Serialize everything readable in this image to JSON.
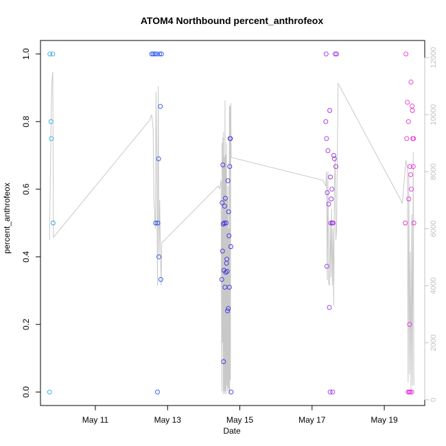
{
  "chart_data": {
    "type": "scatter",
    "title": "ATOM4 Northbound percent_anthrofeox",
    "xlabel": "Date",
    "ylabel": "percent_anthrofeox",
    "x_unit": "days since May 9 00:00",
    "xlim": [
      0.48,
      11.12
    ],
    "ylim": [
      -0.04,
      1.04
    ],
    "y2lim": [
      -200,
      12600
    ],
    "x_ticks": [
      {
        "value": 2,
        "label": "May 11"
      },
      {
        "value": 4,
        "label": "May 13"
      },
      {
        "value": 6,
        "label": "May 15"
      },
      {
        "value": 8,
        "label": "May 17"
      },
      {
        "value": 10,
        "label": "May 19"
      }
    ],
    "y_ticks": [
      {
        "value": 0.0,
        "label": "0.0"
      },
      {
        "value": 0.2,
        "label": "0.2"
      },
      {
        "value": 0.4,
        "label": "0.4"
      },
      {
        "value": 0.6,
        "label": "0.6"
      },
      {
        "value": 0.8,
        "label": "0.8"
      },
      {
        "value": 1.0,
        "label": "1.0"
      }
    ],
    "y2_ticks": [
      {
        "value": 0,
        "label": "0"
      },
      {
        "value": 2000,
        "label": "2000"
      },
      {
        "value": 4000,
        "label": "4000"
      },
      {
        "value": 6000,
        "label": "6000"
      },
      {
        "value": 8000,
        "label": "8000"
      },
      {
        "value": 10000,
        "label": "10000"
      },
      {
        "value": 12000,
        "label": "12000"
      }
    ],
    "points": [
      {
        "x": 0.73,
        "y": 0.0,
        "c": "#29a8e6"
      },
      {
        "x": 0.74,
        "y": 1.0,
        "c": "#29a8e6"
      },
      {
        "x": 0.77,
        "y": 0.8,
        "c": "#29a8e6"
      },
      {
        "x": 0.78,
        "y": 0.75,
        "c": "#29a8e6"
      },
      {
        "x": 0.82,
        "y": 1.0,
        "c": "#29a8e6"
      },
      {
        "x": 0.83,
        "y": 0.5,
        "c": "#29a8e6"
      },
      {
        "x": 3.56,
        "y": 1.0,
        "c": "#1e4ff0"
      },
      {
        "x": 3.6,
        "y": 1.0,
        "c": "#1e4ff0"
      },
      {
        "x": 3.65,
        "y": 1.0,
        "c": "#1e4ff0"
      },
      {
        "x": 3.67,
        "y": 0.5,
        "c": "#1e4ff0"
      },
      {
        "x": 3.7,
        "y": 1.0,
        "c": "#1e4ff0"
      },
      {
        "x": 3.72,
        "y": 0.0,
        "c": "#1e4ff0"
      },
      {
        "x": 3.73,
        "y": 0.5,
        "c": "#1e4ff0"
      },
      {
        "x": 3.75,
        "y": 0.69,
        "c": "#1e4ff0"
      },
      {
        "x": 3.76,
        "y": 0.4,
        "c": "#1e4ff0"
      },
      {
        "x": 3.78,
        "y": 1.0,
        "c": "#1e4ff0"
      },
      {
        "x": 3.8,
        "y": 0.845,
        "c": "#1e4ff0"
      },
      {
        "x": 3.81,
        "y": 0.333,
        "c": "#1e4ff0"
      },
      {
        "x": 3.83,
        "y": 1.0,
        "c": "#1e4ff0"
      },
      {
        "x": 5.5,
        "y": 0.333,
        "c": "#3a2ee0"
      },
      {
        "x": 5.51,
        "y": 0.56,
        "c": "#3a2ee0"
      },
      {
        "x": 5.52,
        "y": 0.417,
        "c": "#3a2ee0"
      },
      {
        "x": 5.53,
        "y": 0.672,
        "c": "#3a2ee0"
      },
      {
        "x": 5.54,
        "y": 0.497,
        "c": "#3a2ee0"
      },
      {
        "x": 5.55,
        "y": 0.09,
        "c": "#3a2ee0"
      },
      {
        "x": 5.56,
        "y": 0.36,
        "c": "#3a2ee0"
      },
      {
        "x": 5.57,
        "y": 0.5,
        "c": "#3a2ee0"
      },
      {
        "x": 5.58,
        "y": 0.55,
        "c": "#3a2ee0"
      },
      {
        "x": 5.59,
        "y": 0.31,
        "c": "#3a2ee0"
      },
      {
        "x": 5.6,
        "y": 0.573,
        "c": "#3a2ee0"
      },
      {
        "x": 5.61,
        "y": 0.354,
        "c": "#3a2ee0"
      },
      {
        "x": 5.62,
        "y": 0.5,
        "c": "#3a2ee0"
      },
      {
        "x": 5.63,
        "y": 0.381,
        "c": "#3a2ee0"
      },
      {
        "x": 5.64,
        "y": 0.393,
        "c": "#3a2ee0"
      },
      {
        "x": 5.65,
        "y": 0.357,
        "c": "#3a2ee0"
      },
      {
        "x": 5.66,
        "y": 0.24,
        "c": "#3a2ee0"
      },
      {
        "x": 5.67,
        "y": 0.625,
        "c": "#3a2ee0"
      },
      {
        "x": 5.68,
        "y": 0.247,
        "c": "#3a2ee0"
      },
      {
        "x": 5.69,
        "y": 0.533,
        "c": "#3a2ee0"
      },
      {
        "x": 5.7,
        "y": 0.462,
        "c": "#3a2ee0"
      },
      {
        "x": 5.71,
        "y": 0.31,
        "c": "#3a2ee0"
      },
      {
        "x": 5.72,
        "y": 0.667,
        "c": "#3a2ee0"
      },
      {
        "x": 5.73,
        "y": 0.75,
        "c": "#3a2ee0"
      },
      {
        "x": 5.74,
        "y": 0.75,
        "c": "#3a2ee0"
      },
      {
        "x": 5.75,
        "y": 0.43,
        "c": "#3a2ee0"
      },
      {
        "x": 5.76,
        "y": 0.0,
        "c": "#3a2ee0"
      },
      {
        "x": 8.38,
        "y": 0.8,
        "c": "#9a2ee0"
      },
      {
        "x": 8.39,
        "y": 1.0,
        "c": "#9a2ee0"
      },
      {
        "x": 8.4,
        "y": 0.75,
        "c": "#9a2ee0"
      },
      {
        "x": 8.41,
        "y": 0.372,
        "c": "#9a2ee0"
      },
      {
        "x": 8.42,
        "y": 0.59,
        "c": "#9a2ee0"
      },
      {
        "x": 8.44,
        "y": 0.714,
        "c": "#9a2ee0"
      },
      {
        "x": 8.46,
        "y": 0.556,
        "c": "#9a2ee0"
      },
      {
        "x": 8.48,
        "y": 0.25,
        "c": "#9a2ee0"
      },
      {
        "x": 8.49,
        "y": 0.833,
        "c": "#9a2ee0"
      },
      {
        "x": 8.5,
        "y": 0.0,
        "c": "#9a2ee0"
      },
      {
        "x": 8.51,
        "y": 0.636,
        "c": "#9a2ee0"
      },
      {
        "x": 8.52,
        "y": 0.5,
        "c": "#9a2ee0"
      },
      {
        "x": 8.53,
        "y": 0.571,
        "c": "#9a2ee0"
      },
      {
        "x": 8.55,
        "y": 0.6,
        "c": "#9a2ee0"
      },
      {
        "x": 8.56,
        "y": 0.5,
        "c": "#9a2ee0"
      },
      {
        "x": 8.57,
        "y": 0.0,
        "c": "#9a2ee0"
      },
      {
        "x": 8.58,
        "y": 0.5,
        "c": "#9a2ee0"
      },
      {
        "x": 8.6,
        "y": 0.7,
        "c": "#9a2ee0"
      },
      {
        "x": 8.62,
        "y": 0.69,
        "c": "#9a2ee0"
      },
      {
        "x": 8.64,
        "y": 1.0,
        "c": "#9a2ee0"
      },
      {
        "x": 8.66,
        "y": 0.667,
        "c": "#9a2ee0"
      },
      {
        "x": 8.68,
        "y": 1.0,
        "c": "#9a2ee0"
      },
      {
        "x": 10.58,
        "y": 0.5,
        "c": "#ea2bd8"
      },
      {
        "x": 10.6,
        "y": 1.0,
        "c": "#ea2bd8"
      },
      {
        "x": 10.62,
        "y": 0.75,
        "c": "#ea2bd8"
      },
      {
        "x": 10.64,
        "y": 0.857,
        "c": "#ea2bd8"
      },
      {
        "x": 10.66,
        "y": 0.0,
        "c": "#ea2bd8"
      },
      {
        "x": 10.67,
        "y": 0.8,
        "c": "#ea2bd8"
      },
      {
        "x": 10.68,
        "y": 0.571,
        "c": "#ea2bd8"
      },
      {
        "x": 10.69,
        "y": 0.0,
        "c": "#ea2bd8"
      },
      {
        "x": 10.7,
        "y": 0.2,
        "c": "#ea2bd8"
      },
      {
        "x": 10.71,
        "y": 0.667,
        "c": "#ea2bd8"
      },
      {
        "x": 10.72,
        "y": 0.0,
        "c": "#ea2bd8"
      },
      {
        "x": 10.73,
        "y": 0.643,
        "c": "#ea2bd8"
      },
      {
        "x": 10.74,
        "y": 0.917,
        "c": "#ea2bd8"
      },
      {
        "x": 10.75,
        "y": 0.6,
        "c": "#ea2bd8"
      },
      {
        "x": 10.76,
        "y": 0.0,
        "c": "#ea2bd8"
      },
      {
        "x": 10.77,
        "y": 0.846,
        "c": "#ea2bd8"
      },
      {
        "x": 10.78,
        "y": 0.833,
        "c": "#ea2bd8"
      },
      {
        "x": 10.79,
        "y": 0.75,
        "c": "#ea2bd8"
      },
      {
        "x": 10.8,
        "y": 0.667,
        "c": "#ea2bd8"
      },
      {
        "x": 10.81,
        "y": 0.75,
        "c": "#ea2bd8"
      },
      {
        "x": 10.82,
        "y": 0.5,
        "c": "#ea2bd8"
      }
    ],
    "series2": {
      "name": "secondary axis series",
      "color": "#c8c8c8",
      "points": [
        [
          0.73,
          5600
        ],
        [
          0.76,
          8500
        ],
        [
          0.78,
          10300
        ],
        [
          0.8,
          11200
        ],
        [
          0.82,
          11500
        ],
        [
          0.84,
          5700
        ],
        [
          3.5,
          9800
        ],
        [
          3.56,
          10000
        ],
        [
          3.6,
          9500
        ],
        [
          3.62,
          7000
        ],
        [
          3.66,
          6000
        ],
        [
          3.68,
          10800
        ],
        [
          3.7,
          8000
        ],
        [
          3.72,
          4000
        ],
        [
          3.74,
          11000
        ],
        [
          3.76,
          5000
        ],
        [
          3.78,
          7000
        ],
        [
          3.8,
          5400
        ],
        [
          3.82,
          4000
        ],
        [
          3.84,
          5500
        ],
        [
          5.4,
          7500
        ],
        [
          5.44,
          7400
        ],
        [
          5.48,
          7700
        ],
        [
          5.5,
          300
        ],
        [
          5.51,
          9000
        ],
        [
          5.52,
          2000
        ],
        [
          5.53,
          9200
        ],
        [
          5.54,
          200
        ],
        [
          5.55,
          9400
        ],
        [
          5.56,
          300
        ],
        [
          5.57,
          8500
        ],
        [
          5.58,
          200
        ],
        [
          5.59,
          10500
        ],
        [
          5.6,
          300
        ],
        [
          5.61,
          8600
        ],
        [
          5.62,
          200
        ],
        [
          5.63,
          9000
        ],
        [
          5.64,
          500
        ],
        [
          5.65,
          7000
        ],
        [
          5.66,
          300
        ],
        [
          5.67,
          7500
        ],
        [
          5.68,
          400
        ],
        [
          5.69,
          6000
        ],
        [
          5.7,
          200
        ],
        [
          5.71,
          10300
        ],
        [
          5.72,
          300
        ],
        [
          5.73,
          10300
        ],
        [
          5.74,
          700
        ],
        [
          5.75,
          10400
        ],
        [
          5.76,
          8500
        ],
        [
          8.3,
          7700
        ],
        [
          8.38,
          7500
        ],
        [
          8.4,
          8000
        ],
        [
          8.42,
          4200
        ],
        [
          8.44,
          8000
        ],
        [
          8.46,
          4100
        ],
        [
          8.48,
          4000
        ],
        [
          8.5,
          6200
        ],
        [
          8.52,
          4300
        ],
        [
          8.54,
          6700
        ],
        [
          8.56,
          4000
        ],
        [
          8.58,
          6000
        ],
        [
          8.6,
          3300
        ],
        [
          8.62,
          7500
        ],
        [
          8.64,
          8500
        ],
        [
          8.66,
          5600
        ],
        [
          8.68,
          6000
        ],
        [
          8.72,
          11100
        ],
        [
          10.5,
          6900
        ],
        [
          10.6,
          8400
        ],
        [
          10.62,
          8300
        ],
        [
          10.64,
          8000
        ],
        [
          10.66,
          600
        ],
        [
          10.68,
          8000
        ],
        [
          10.7,
          900
        ],
        [
          10.72,
          5200
        ],
        [
          10.74,
          300
        ],
        [
          10.76,
          6500
        ],
        [
          10.78,
          500
        ],
        [
          10.8,
          8700
        ],
        [
          10.82,
          500
        ]
      ]
    }
  }
}
